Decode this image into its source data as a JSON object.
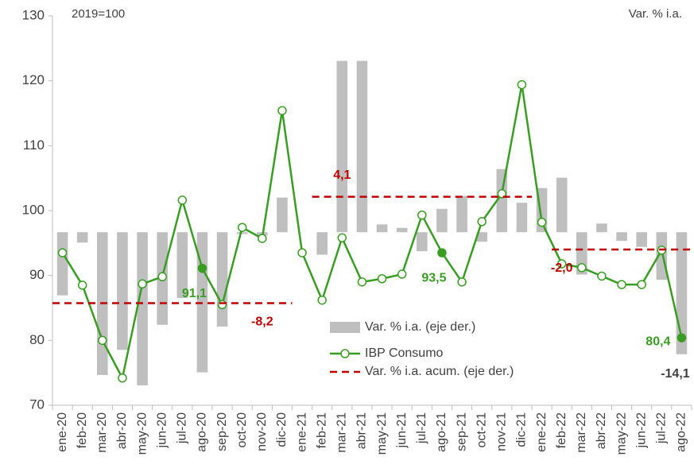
{
  "chart_data": {
    "type": "combo",
    "annotations": [
      "2019=100",
      "Var. % i.a."
    ],
    "categories": [
      "ene-20",
      "feb-20",
      "mar-20",
      "abr-20",
      "may-20",
      "jun-20",
      "jul-20",
      "ago-20",
      "sep-20",
      "oct-20",
      "nov-20",
      "dic-20",
      "ene-21",
      "feb-21",
      "mar-21",
      "abr-21",
      "may-21",
      "jun-21",
      "jul-21",
      "ago-21",
      "sep-21",
      "oct-21",
      "nov-21",
      "dic-21",
      "ene-22",
      "feb-22",
      "mar-22",
      "abr-22",
      "may-22",
      "jun-22",
      "jul-22",
      "ago-22"
    ],
    "ylim": [
      70,
      130
    ],
    "yticks": [
      70,
      80,
      90,
      100,
      110,
      120,
      130
    ],
    "y2lim": [
      -20,
      25
    ],
    "legend": "center",
    "series": [
      {
        "name": "Var. % i.a. (eje der.)",
        "type": "bar",
        "axis": "y2",
        "color": "#bfbfbf",
        "label_color": "#404040",
        "values": [
          -7.3,
          -1.2,
          -16.5,
          -13.6,
          -17.7,
          -10.7,
          -7.6,
          -16.2,
          -10.9,
          -0.2,
          -0.4,
          4.0,
          0,
          -2.6,
          19.8,
          19.8,
          0.9,
          0.5,
          -2.2,
          2.7,
          4.2,
          -1.1,
          7.3,
          3.4,
          5.1,
          6.3,
          -4.9,
          1.0,
          -1.0,
          -1.7,
          -5.5,
          -14.1
        ],
        "value_labels": [
          null,
          null,
          null,
          null,
          null,
          null,
          null,
          null,
          null,
          null,
          null,
          null,
          null,
          null,
          null,
          null,
          null,
          null,
          null,
          null,
          null,
          null,
          null,
          null,
          null,
          null,
          null,
          null,
          null,
          null,
          null,
          "-14,1"
        ]
      },
      {
        "name": "IBP Consumo",
        "type": "line",
        "color": "#3a9d23",
        "label_color": "#3a9d23",
        "values": [
          93.5,
          88.5,
          80.0,
          74.2,
          88.7,
          89.8,
          101.6,
          91.1,
          85.5,
          97.4,
          95.7,
          115.4,
          93.5,
          86.2,
          95.8,
          89.0,
          89.5,
          90.2,
          99.3,
          93.5,
          89.0,
          98.3,
          102.6,
          119.4,
          98.2,
          91.8,
          91.2,
          89.9,
          88.6,
          88.6,
          93.9,
          80.4
        ],
        "value_labels": [
          null,
          null,
          null,
          null,
          null,
          null,
          null,
          "91,1",
          null,
          null,
          null,
          null,
          null,
          null,
          null,
          null,
          null,
          null,
          null,
          "93,5",
          null,
          null,
          null,
          null,
          null,
          null,
          null,
          null,
          null,
          null,
          null,
          "80,4"
        ]
      },
      {
        "name": "Var. % i.a. acum. (eje der.)",
        "type": "line",
        "dash": true,
        "axis": "y2",
        "color": "#c00000",
        "label_color": "#c00000",
        "values": [
          -8.2,
          -8.2,
          -8.2,
          -8.2,
          -8.2,
          -8.2,
          -8.2,
          -8.2,
          -8.2,
          -8.2,
          -8.2,
          -8.2,
          null,
          4.1,
          4.1,
          4.1,
          4.1,
          4.1,
          4.1,
          4.1,
          4.1,
          4.1,
          4.1,
          4.1,
          null,
          -2.0,
          -2.0,
          -2.0,
          -2.0,
          -2.0,
          -2.0,
          -2.0
        ],
        "value_labels": [
          null,
          null,
          null,
          null,
          null,
          null,
          null,
          null,
          null,
          null,
          "-8,2",
          null,
          null,
          null,
          "4,1",
          null,
          null,
          null,
          null,
          null,
          null,
          null,
          null,
          null,
          null,
          "-2,0",
          null,
          null,
          null,
          null,
          null,
          null
        ]
      }
    ]
  }
}
